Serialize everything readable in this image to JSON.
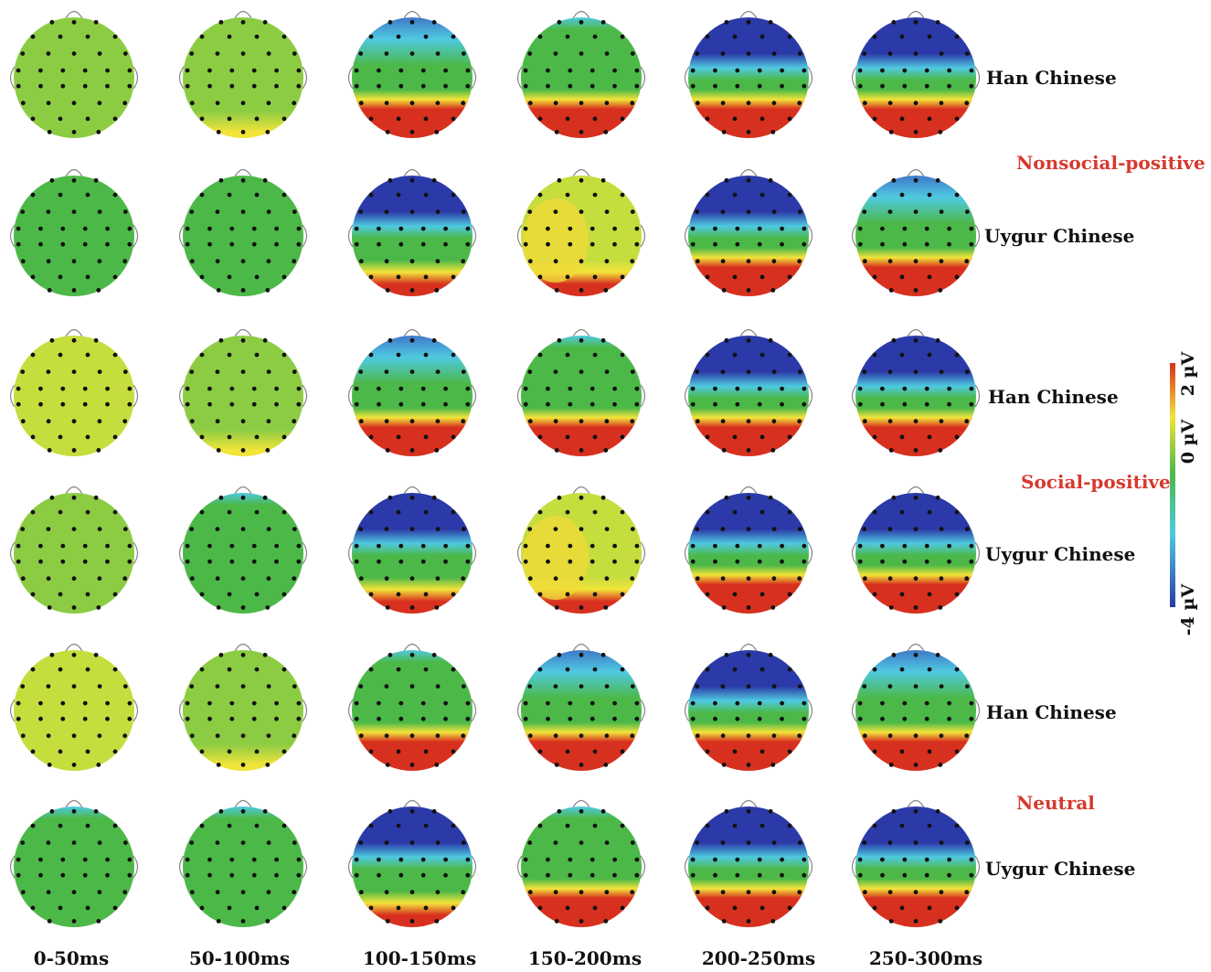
{
  "time_windows": [
    "0-50ms",
    "50-100ms",
    "100-150ms",
    "150-200ms",
    "200-250ms",
    "250-300ms"
  ],
  "rows": [
    {
      "group": "Han Chinese"
    },
    {
      "group": "Uygur Chinese"
    },
    {
      "group": "Han Chinese"
    },
    {
      "group": "Uygur Chinese"
    },
    {
      "group": "Han Chinese"
    },
    {
      "group": "Uygur Chinese"
    }
  ],
  "conditions": [
    "Nonsocial-positive",
    "Social-positive",
    "Neutral"
  ],
  "colorbar": {
    "max_label": "2 µV",
    "mid_label": "0 µV",
    "min_label": "-4 µV",
    "colors": [
      "#d7301f",
      "#f2e43a",
      "#4cb848",
      "#4fc9e0",
      "#2b3aa8"
    ]
  }
}
